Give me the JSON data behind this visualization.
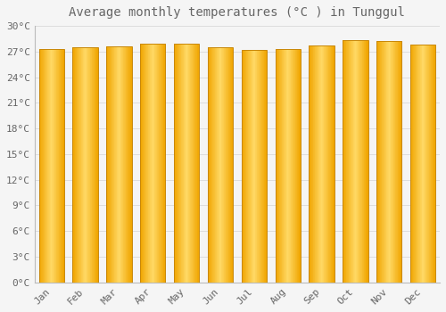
{
  "title": "Average monthly temperatures (°C ) in Tunggul",
  "months": [
    "Jan",
    "Feb",
    "Mar",
    "Apr",
    "May",
    "Jun",
    "Jul",
    "Aug",
    "Sep",
    "Oct",
    "Nov",
    "Dec"
  ],
  "temperatures": [
    27.3,
    27.5,
    27.6,
    27.9,
    27.9,
    27.5,
    27.2,
    27.3,
    27.7,
    28.3,
    28.2,
    27.8
  ],
  "bar_color_center": "#FFD966",
  "bar_color_edge": "#F0A500",
  "bar_outline_color": "#C8880A",
  "background_color": "#F5F5F5",
  "grid_color": "#DDDDDD",
  "text_color": "#666666",
  "ylim": [
    0,
    30
  ],
  "title_fontsize": 10,
  "tick_fontsize": 8
}
